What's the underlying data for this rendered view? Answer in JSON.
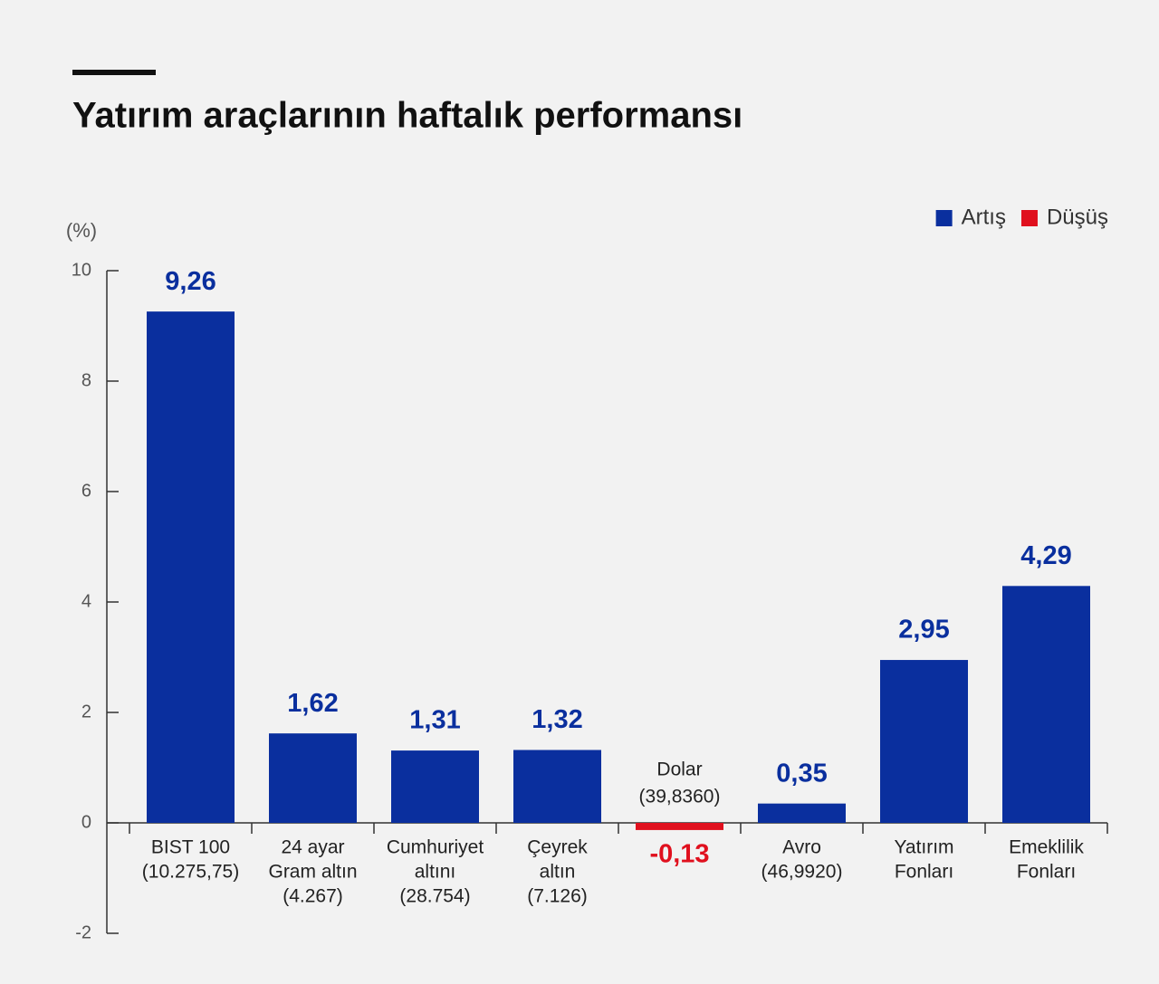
{
  "chart_data": {
    "type": "bar",
    "title": "Yatırım araçlarının haftalık performansı",
    "y_label": "(%)",
    "categories": [
      [
        "BIST 100",
        "(10.275,75)"
      ],
      [
        "24 ayar",
        "Gram altın",
        "(4.267)"
      ],
      [
        "Cumhuriyet",
        "altını",
        "(28.754)"
      ],
      [
        "Çeyrek",
        "altın",
        "(7.126)"
      ],
      [
        "Dolar",
        "(39,8360)"
      ],
      [
        "Avro",
        "(46,9920)"
      ],
      [
        "Yatırım",
        "Fonları"
      ],
      [
        "Emeklilik",
        "Fonları"
      ]
    ],
    "values": [
      9.26,
      1.62,
      1.31,
      1.32,
      -0.13,
      0.35,
      2.95,
      4.29
    ],
    "value_labels": [
      "9,26",
      "1,62",
      "1,31",
      "1,32",
      "-0,13",
      "0,35",
      "2,95",
      "4,29"
    ],
    "colors": [
      "#0a2f9e",
      "#0a2f9e",
      "#0a2f9e",
      "#0a2f9e",
      "#e0101e",
      "#0a2f9e",
      "#0a2f9e",
      "#0a2f9e"
    ],
    "legend": [
      {
        "name": "Artış",
        "color": "#0a2f9e"
      },
      {
        "name": "Düşüş",
        "color": "#e0101e"
      }
    ],
    "legend_position": "top-right",
    "ylim": [
      -2,
      10
    ],
    "yticks": [
      -2,
      0,
      2,
      4,
      6,
      8,
      10
    ]
  }
}
